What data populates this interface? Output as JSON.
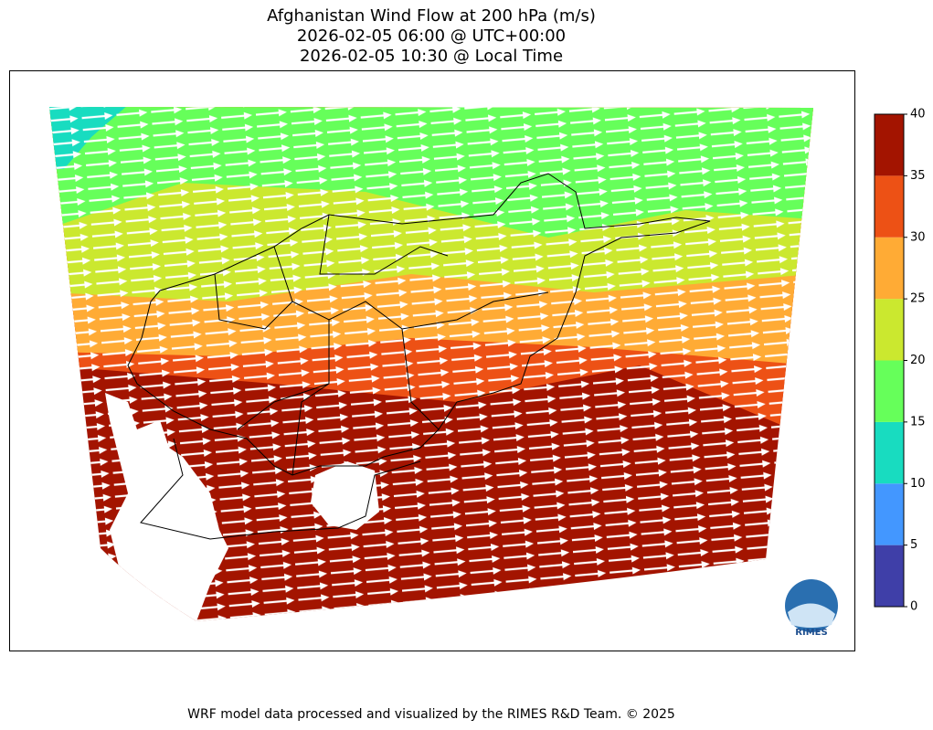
{
  "map": {
    "title": [
      "Afghanistan Wind Flow at 200 hPa (m/s)",
      "2026-02-05 06:00 @ UTC+00:00",
      "2026-02-05 10:30 @ Local Time"
    ],
    "colorbar": {
      "lim": [
        0,
        40
      ],
      "ticks": [
        0,
        5,
        10,
        15,
        20,
        25,
        30,
        35,
        40
      ],
      "colors": [
        "#3f3fa8",
        "#4397ff",
        "#18dcc0",
        "#66ff5a",
        "#cbe82f",
        "#ffab35",
        "#ed5115",
        "#a31400"
      ]
    },
    "logo": "RIMES",
    "footer": "WRF model data processed and visualized by the RIMES R&D Team. © 2025"
  }
}
